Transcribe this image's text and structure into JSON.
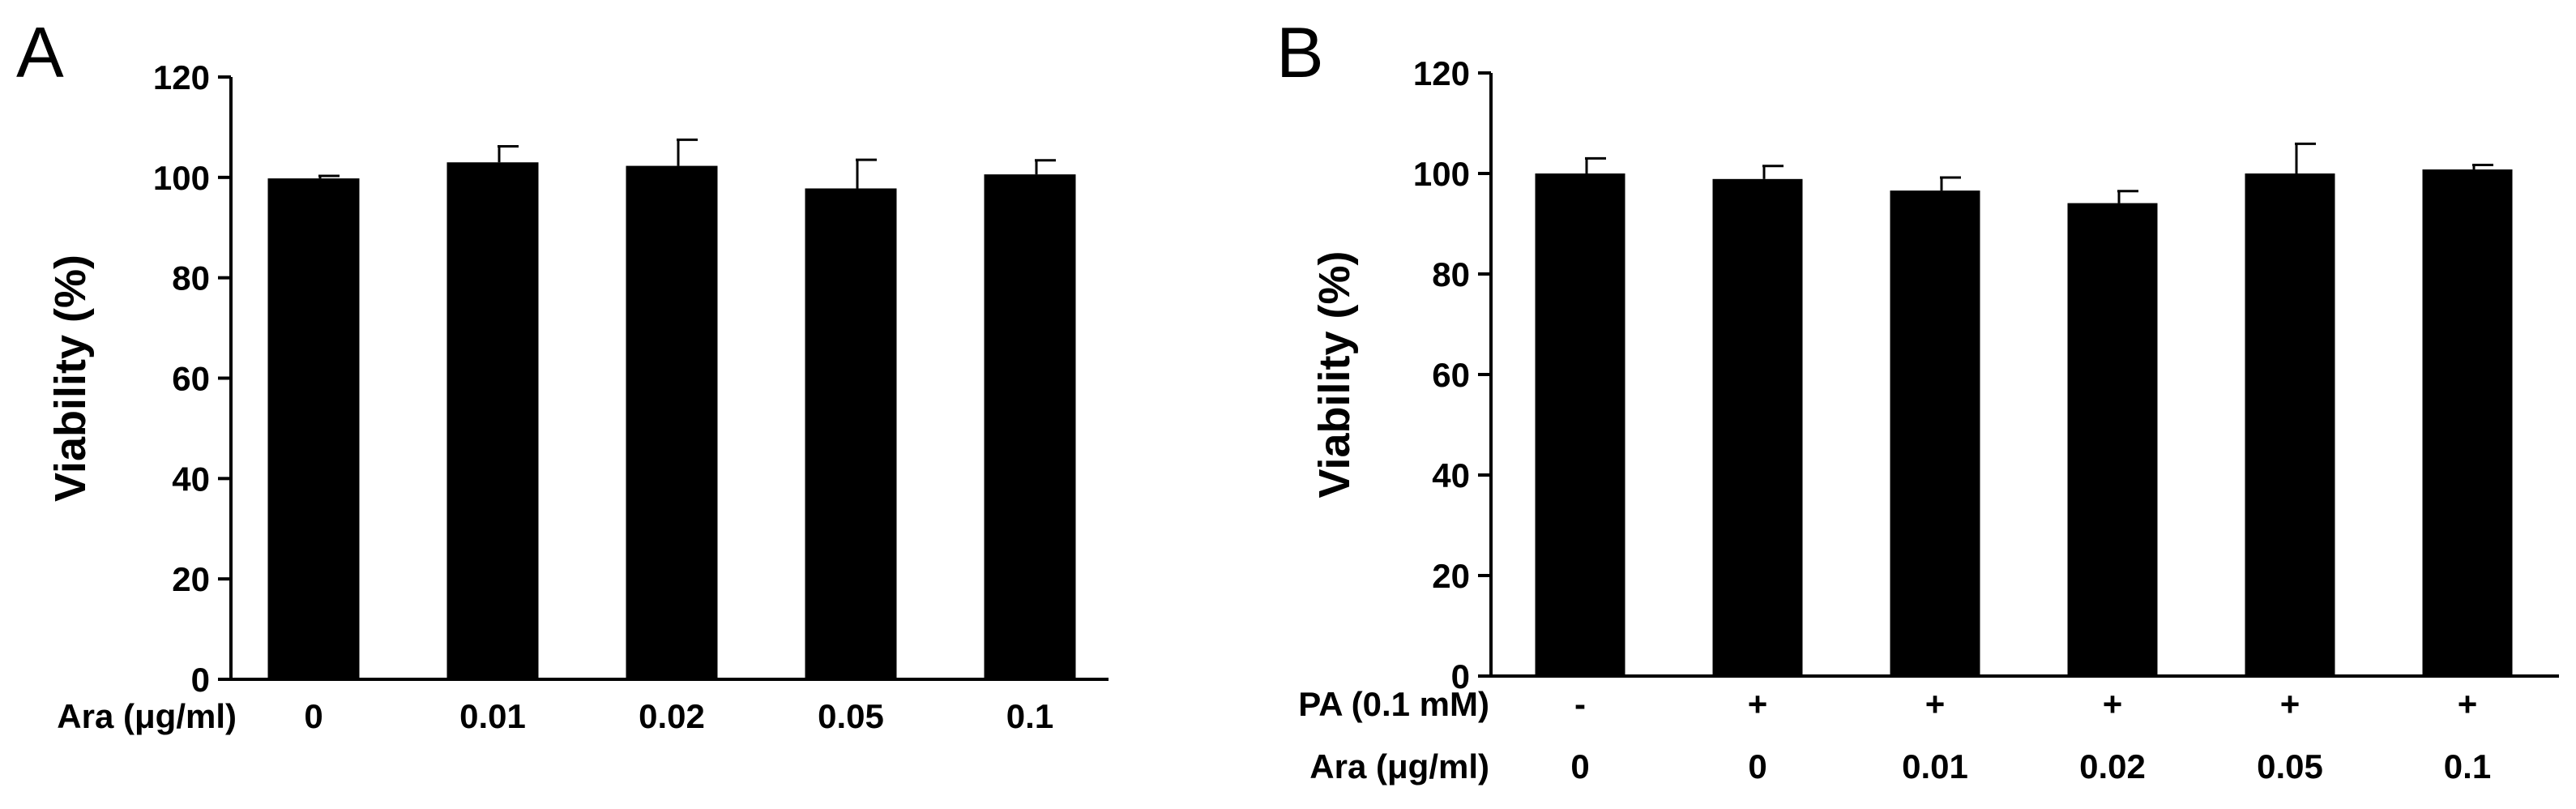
{
  "chart_data": [
    {
      "panel": "A",
      "type": "bar",
      "ylabel": "Viability (%)",
      "ylim": [
        0,
        120
      ],
      "yticks": [
        0,
        20,
        40,
        60,
        80,
        100,
        120
      ],
      "grid": false,
      "bar_color": "#000000",
      "row_labels": [
        {
          "name": "Ara (μg/ml)",
          "values": [
            "0",
            "0.01",
            "0.02",
            "0.05",
            "0.1"
          ]
        }
      ],
      "values": [
        99.8,
        103.0,
        102.3,
        97.8,
        100.6
      ],
      "errors": [
        0.5,
        3.2,
        5.2,
        5.7,
        2.8
      ]
    },
    {
      "panel": "B",
      "type": "bar",
      "ylabel": "Viability (%)",
      "ylim": [
        0,
        120
      ],
      "yticks": [
        0,
        20,
        40,
        60,
        80,
        100,
        120
      ],
      "grid": false,
      "bar_color": "#000000",
      "row_labels": [
        {
          "name": "PA (0.1 mM)",
          "values": [
            "-",
            "+",
            "+",
            "+",
            "+",
            "+"
          ]
        },
        {
          "name": "Ara (μg/ml)",
          "values": [
            "0",
            "0",
            "0.01",
            "0.02",
            "0.05",
            "0.1"
          ]
        }
      ],
      "values": [
        100.0,
        98.9,
        96.6,
        94.1,
        100.0,
        100.8
      ],
      "errors": [
        3.0,
        2.6,
        2.6,
        2.4,
        5.9,
        0.9
      ]
    }
  ]
}
